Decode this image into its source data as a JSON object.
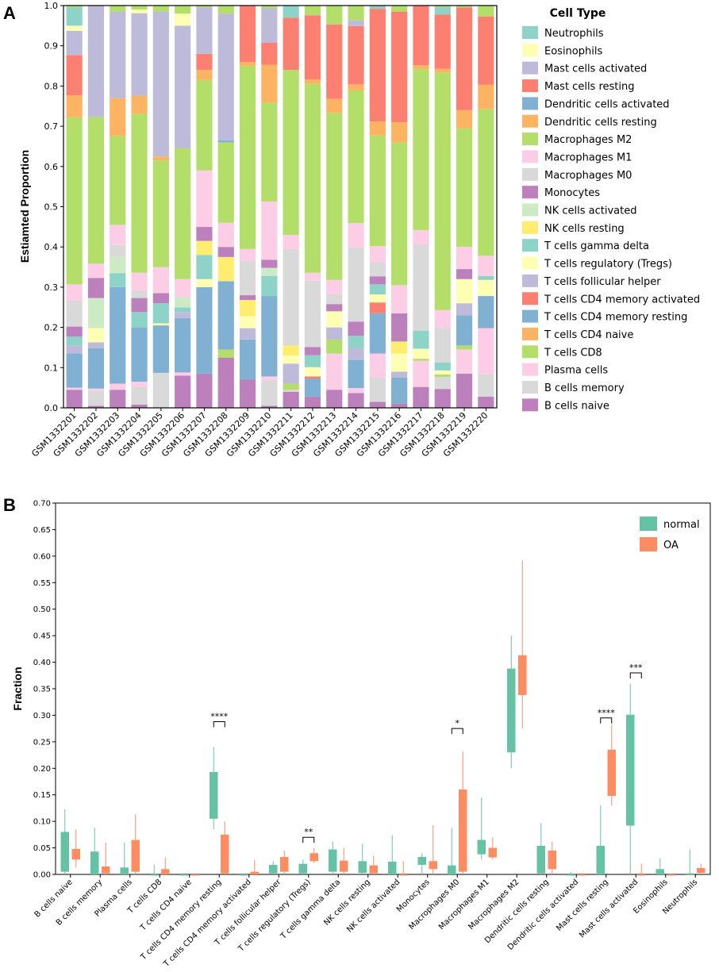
{
  "colors": {
    "Neutrophils": "#8dd3c7",
    "Eosinophils": "#ffffb3",
    "Mast cells activated": "#bebada",
    "Mast cells resting": "#fb8072",
    "Dendritic cells activated": "#80b1d3",
    "Dendritic cells resting": "#fdb462",
    "Macrophages M2": "#b3de69",
    "Macrophages M1": "#fccde5",
    "Macrophages M0": "#d9d9d9",
    "Monocytes": "#bc80bd",
    "NK cells activated": "#ccebc5",
    "NK cells resting": "#ffed6f",
    "T cells gamma delta": "#8dd3c7",
    "T cells regulatory (Tregs)": "#ffffb3",
    "T cells follicular helper": "#bebada",
    "T cells CD4 memory activated": "#fb8072",
    "T cells CD4 memory resting": "#80b1d3",
    "T cells CD4 naive": "#fdb462",
    "T cells CD8": "#b3de69",
    "Plasma cells": "#fccde5",
    "B cells memory": "#d9d9d9",
    "B cells naive": "#bc80bd",
    "normal": "#66c2a5",
    "OA": "#fc8d62"
  },
  "chart_data": [
    {
      "panel": "A",
      "type": "bar",
      "stacked": true,
      "ylabel": "Estiamted Proportion",
      "ylim": [
        0,
        1
      ],
      "yticks": [
        "0.0",
        "0.1",
        "0.2",
        "0.3",
        "0.4",
        "0.5",
        "0.6",
        "0.7",
        "0.8",
        "0.9",
        "1.0"
      ],
      "legend_title": "Cell Type",
      "legend_position": "right",
      "categories": [
        "GSM1332201",
        "GSM1332202",
        "GSM1332203",
        "GSM1332204",
        "GSM1332205",
        "GSM1332206",
        "GSM1332207",
        "GSM1332208",
        "GSM1332209",
        "GSM1332210",
        "GSM1332211",
        "GSM1332212",
        "GSM1332213",
        "GSM1332214",
        "GSM1332215",
        "GSM1332216",
        "GSM1332217",
        "GSM1332218",
        "GSM1332219",
        "GSM1332220"
      ],
      "series": [
        {
          "name": "B cells naive",
          "values": [
            0.045,
            0.005,
            0.045,
            0.008,
            0.0,
            0.08,
            0.085,
            0.125,
            0.07,
            0.005,
            0.04,
            0.028,
            0.045,
            0.037,
            0.015,
            0.01,
            0.052,
            0.047,
            0.085,
            0.028
          ]
        },
        {
          "name": "B cells memory",
          "values": [
            0.0,
            0.038,
            0.0,
            0.045,
            0.087,
            0.0,
            0.0,
            0.0,
            0.0,
            0.063,
            0.005,
            0.0,
            0.0,
            0.0,
            0.06,
            0.0,
            0.0,
            0.03,
            0.0,
            0.055
          ]
        },
        {
          "name": "Plasma cells",
          "values": [
            0.005,
            0.005,
            0.015,
            0.012,
            0.0,
            0.008,
            0.0,
            0.0,
            0.0,
            0.01,
            0.0,
            0.0,
            0.09,
            0.012,
            0.06,
            0.0,
            0.065,
            0.0,
            0.06,
            0.115
          ]
        },
        {
          "name": "T cells CD8",
          "values": [
            0.0,
            0.0,
            0.0,
            0.0,
            0.0,
            0.0,
            0.0,
            0.02,
            0.0,
            0.0,
            0.015,
            0.0,
            0.035,
            0.0,
            0.0,
            0.0,
            0.005,
            0.006,
            0.01,
            0.0
          ]
        },
        {
          "name": "T cells CD4 naive",
          "values": [
            0.0,
            0.0,
            0.0,
            0.0,
            0.0,
            0.0,
            0.0,
            0.0,
            0.0,
            0.0,
            0.0,
            0.0,
            0.0,
            0.0,
            0.0,
            0.0,
            0.0,
            0.0,
            0.0,
            0.0
          ]
        },
        {
          "name": "T cells CD4 memory resting",
          "values": [
            0.085,
            0.1,
            0.24,
            0.135,
            0.118,
            0.135,
            0.215,
            0.17,
            0.1,
            0.2,
            0.0,
            0.045,
            0.0,
            0.07,
            0.1,
            0.065,
            0.0,
            0.0,
            0.075,
            0.08
          ]
        },
        {
          "name": "T cells CD4 memory activated",
          "values": [
            0.0,
            0.0,
            0.0,
            0.0,
            0.0,
            0.0,
            0.0,
            0.0,
            0.0,
            0.0,
            0.0,
            0.005,
            0.0,
            0.0,
            0.027,
            0.0,
            0.0,
            0.0,
            0.0,
            0.0
          ]
        },
        {
          "name": "T cells follicular helper",
          "values": [
            0.02,
            0.015,
            0.0,
            0.0,
            0.0,
            0.015,
            0.0,
            0.0,
            0.028,
            0.0,
            0.05,
            0.0,
            0.03,
            0.03,
            0.0,
            0.015,
            0.0,
            0.0,
            0.03,
            0.0
          ]
        },
        {
          "name": "T cells regulatory (Tregs)",
          "values": [
            0.0,
            0.035,
            0.0,
            0.0,
            0.005,
            0.0,
            0.02,
            0.0,
            0.03,
            0.0,
            0.02,
            0.023,
            0.04,
            0.0,
            0.02,
            0.045,
            0.025,
            0.01,
            0.06,
            0.04
          ]
        },
        {
          "name": "T cells gamma delta",
          "values": [
            0.022,
            0.0,
            0.035,
            0.038,
            0.05,
            0.012,
            0.06,
            0.0,
            0.0,
            0.05,
            0.0,
            0.03,
            0.0,
            0.03,
            0.025,
            0.0,
            0.045,
            0.02,
            0.0,
            0.01
          ]
        },
        {
          "name": "NK cells resting",
          "values": [
            0.0,
            0.0,
            0.0,
            0.0,
            0.0,
            0.0,
            0.035,
            0.06,
            0.04,
            0.0,
            0.025,
            0.0,
            0.0,
            0.0,
            0.0,
            0.03,
            0.0,
            0.0,
            0.0,
            0.0
          ]
        },
        {
          "name": "NK cells activated",
          "values": [
            0.0,
            0.075,
            0.04,
            0.0,
            0.0,
            0.025,
            0.0,
            0.0,
            0.0,
            0.02,
            0.0,
            0.0,
            0.0,
            0.0,
            0.0,
            0.0,
            0.0,
            0.0,
            0.0,
            0.0
          ]
        },
        {
          "name": "Monocytes",
          "values": [
            0.025,
            0.05,
            0.0,
            0.035,
            0.025,
            0.0,
            0.035,
            0.025,
            0.012,
            0.02,
            0.0,
            0.02,
            0.018,
            0.035,
            0.02,
            0.07,
            0.0,
            0.0,
            0.025,
            0.0
          ]
        },
        {
          "name": "Macrophages M0",
          "values": [
            0.065,
            0.0,
            0.03,
            0.018,
            0.0,
            0.0,
            0.0,
            0.0,
            0.085,
            0.0,
            0.24,
            0.165,
            0.025,
            0.185,
            0.035,
            0.0,
            0.215,
            0.085,
            0.0,
            0.0
          ]
        },
        {
          "name": "Macrophages M1",
          "values": [
            0.04,
            0.035,
            0.05,
            0.045,
            0.065,
            0.045,
            0.14,
            0.06,
            0.03,
            0.145,
            0.035,
            0.02,
            0.035,
            0.06,
            0.04,
            0.07,
            0.035,
            0.045,
            0.055,
            0.05
          ]
        },
        {
          "name": "Macrophages M2",
          "values": [
            0.415,
            0.365,
            0.22,
            0.395,
            0.265,
            0.325,
            0.225,
            0.2,
            0.455,
            0.245,
            0.41,
            0.47,
            0.415,
            0.33,
            0.275,
            0.355,
            0.4,
            0.59,
            0.295,
            0.365
          ]
        },
        {
          "name": "Dendritic cells resting",
          "values": [
            0.055,
            0.0,
            0.095,
            0.045,
            0.01,
            0.0,
            0.025,
            0.0,
            0.01,
            0.095,
            0.0,
            0.01,
            0.035,
            0.015,
            0.035,
            0.05,
            0.01,
            0.01,
            0.045,
            0.06
          ]
        },
        {
          "name": "Dendritic cells activated",
          "values": [
            0.0,
            0.0,
            0.0,
            0.0,
            0.0,
            0.0,
            0.0,
            0.005,
            0.0,
            0.0,
            0.0,
            0.0,
            0.0,
            0.0,
            0.0,
            0.0,
            0.0,
            0.0,
            0.0,
            0.0
          ]
        },
        {
          "name": "Mast cells resting",
          "values": [
            0.1,
            0.0,
            0.0,
            0.0,
            0.0,
            0.0,
            0.04,
            0.0,
            0.14,
            0.055,
            0.13,
            0.16,
            0.185,
            0.145,
            0.28,
            0.275,
            0.165,
            0.135,
            0.255,
            0.17
          ]
        },
        {
          "name": "Mast cells activated",
          "values": [
            0.06,
            0.277,
            0.215,
            0.205,
            0.36,
            0.305,
            0.115,
            0.315,
            0.0,
            0.085,
            0.0,
            0.0,
            0.0,
            0.015,
            0.0,
            0.0,
            0.0,
            0.0,
            0.0,
            0.0
          ]
        },
        {
          "name": "Eosinophils",
          "values": [
            0.013,
            0.0,
            0.0,
            0.009,
            0.0,
            0.03,
            0.0,
            0.0,
            0.0,
            0.0,
            0.0,
            0.0,
            0.0,
            0.0,
            0.0,
            0.0,
            0.0,
            0.0,
            0.0,
            0.0
          ]
        },
        {
          "name": "Neutrophils",
          "values": [
            0.045,
            0.0,
            0.0,
            0.0,
            0.0,
            0.0,
            0.0,
            0.0,
            0.0,
            0.0,
            0.03,
            0.0,
            0.0,
            0.0,
            0.008,
            0.0,
            0.0,
            0.018,
            0.0,
            0.0
          ]
        }
      ]
    },
    {
      "panel": "B",
      "type": "box",
      "ylabel": "Fraction",
      "ylim": [
        0,
        0.7
      ],
      "yticks": [
        "0.00",
        "0.05",
        "0.10",
        "0.15",
        "0.20",
        "0.25",
        "0.30",
        "0.35",
        "0.40",
        "0.45",
        "0.50",
        "0.55",
        "0.60",
        "0.65",
        "0.70"
      ],
      "legend_position": "top-right",
      "groups": [
        "normal",
        "OA"
      ],
      "categories": [
        "B cells naive",
        "B cells memory",
        "Plasma cells",
        "T cells CD8",
        "T cells CD4 naive",
        "T cells CD4 memory resting",
        "T cells CD4 memory activated",
        "T cells follicular helper",
        "T cells regulatory (Tregs)",
        "T cells gamma delta",
        "NK cells resting",
        "NK cells activated",
        "Monocytes",
        "Macrophages M0",
        "Macrophages M1",
        "Macrophages M2",
        "Dendritic cells resting",
        "Dendritic cells activated",
        "Mast cells resting",
        "Mast cells activated",
        "Eosinophils",
        "Neutrophils"
      ],
      "boxes": {
        "normal": [
          [
            0.0,
            0.005,
            0.04,
            0.08,
            0.123
          ],
          [
            0.0,
            0.0,
            0.018,
            0.043,
            0.088
          ],
          [
            0.0,
            0.0,
            0.005,
            0.013,
            0.06
          ],
          [
            0.0,
            0.0,
            0.0,
            0.0,
            0.018
          ],
          [
            0.0,
            0.0,
            0.0,
            0.0,
            0.0
          ],
          [
            0.085,
            0.105,
            0.13,
            0.193,
            0.24
          ],
          [
            0.0,
            0.0,
            0.0,
            0.0,
            0.0
          ],
          [
            0.0,
            0.002,
            0.01,
            0.018,
            0.025
          ],
          [
            0.0,
            0.002,
            0.01,
            0.02,
            0.028
          ],
          [
            0.0,
            0.005,
            0.025,
            0.047,
            0.062
          ],
          [
            0.0,
            0.003,
            0.015,
            0.025,
            0.058
          ],
          [
            0.0,
            0.0,
            0.005,
            0.024,
            0.074
          ],
          [
            0.0,
            0.018,
            0.025,
            0.033,
            0.04
          ],
          [
            0.0,
            0.0,
            0.005,
            0.017,
            0.088
          ],
          [
            0.028,
            0.038,
            0.05,
            0.065,
            0.145
          ],
          [
            0.2,
            0.23,
            0.33,
            0.388,
            0.45
          ],
          [
            0.0,
            0.002,
            0.02,
            0.054,
            0.097
          ],
          [
            0.0,
            0.0,
            0.0,
            0.0,
            0.005
          ],
          [
            0.0,
            0.0,
            0.005,
            0.054,
            0.13
          ],
          [
            0.0,
            0.092,
            0.2,
            0.301,
            0.36
          ],
          [
            0.0,
            0.0,
            0.0,
            0.01,
            0.03
          ],
          [
            0.0,
            0.0,
            0.0,
            0.002,
            0.047
          ]
        ],
        "OA": [
          [
            0.013,
            0.028,
            0.04,
            0.048,
            0.085
          ],
          [
            0.0,
            0.002,
            0.008,
            0.015,
            0.06
          ],
          [
            0.0,
            0.005,
            0.04,
            0.065,
            0.113
          ],
          [
            0.0,
            0.0,
            0.004,
            0.01,
            0.032
          ],
          [
            0.0,
            0.0,
            0.0,
            0.0,
            0.0
          ],
          [
            0.0,
            0.002,
            0.04,
            0.075,
            0.1
          ],
          [
            0.0,
            0.0,
            0.002,
            0.005,
            0.027
          ],
          [
            0.0,
            0.005,
            0.02,
            0.033,
            0.045
          ],
          [
            0.022,
            0.025,
            0.032,
            0.04,
            0.05
          ],
          [
            0.0,
            0.005,
            0.018,
            0.026,
            0.05
          ],
          [
            0.0,
            0.002,
            0.01,
            0.017,
            0.035
          ],
          [
            0.0,
            0.0,
            0.0,
            0.0,
            0.025
          ],
          [
            0.0,
            0.01,
            0.02,
            0.025,
            0.093
          ],
          [
            0.0,
            0.005,
            0.08,
            0.16,
            0.232
          ],
          [
            0.028,
            0.032,
            0.042,
            0.05,
            0.07
          ],
          [
            0.275,
            0.338,
            0.37,
            0.413,
            0.592
          ],
          [
            0.0,
            0.01,
            0.035,
            0.045,
            0.062
          ],
          [
            0.0,
            0.0,
            0.0,
            0.0,
            0.003
          ],
          [
            0.13,
            0.148,
            0.2,
            0.235,
            0.282
          ],
          [
            0.0,
            0.0,
            0.0,
            0.0,
            0.02
          ],
          [
            0.0,
            0.0,
            0.0,
            0.0,
            0.0
          ],
          [
            0.0,
            0.003,
            0.008,
            0.012,
            0.02
          ]
        ]
      },
      "annotations": [
        {
          "category": "T cells CD4 memory resting",
          "label": "****",
          "y": 0.288
        },
        {
          "category": "T cells regulatory (Tregs)",
          "label": "**",
          "y": 0.07
        },
        {
          "category": "Macrophages M0",
          "label": "*",
          "y": 0.275
        },
        {
          "category": "Mast cells resting",
          "label": "****",
          "y": 0.295
        },
        {
          "category": "Mast cells activated",
          "label": "***",
          "y": 0.38
        }
      ]
    }
  ],
  "panel_labels": [
    "A",
    "B"
  ]
}
